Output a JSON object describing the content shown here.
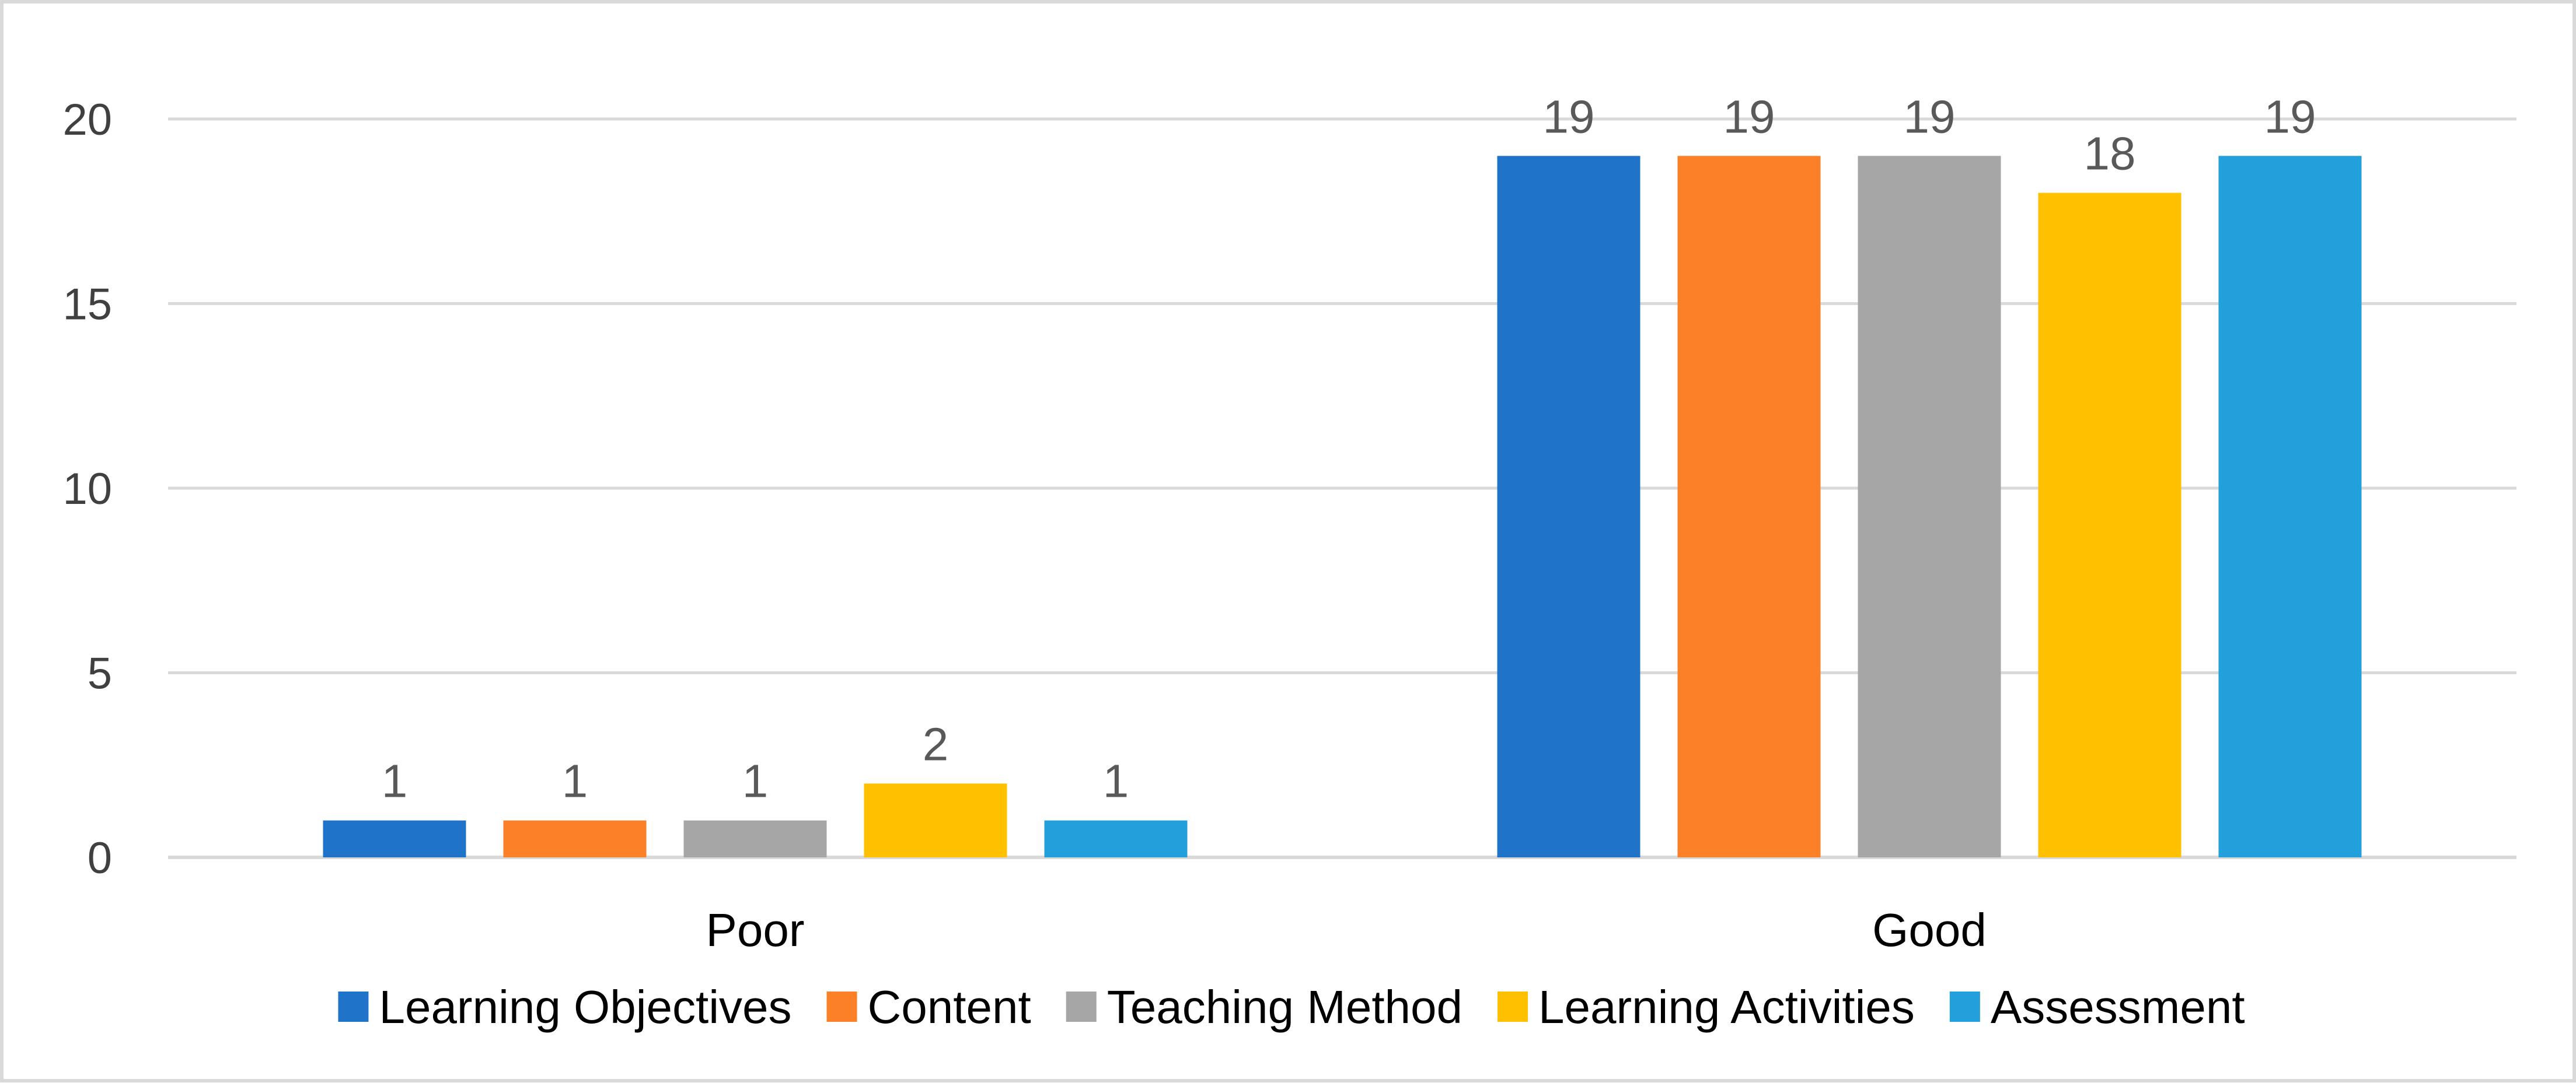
{
  "chart_data": {
    "type": "bar",
    "categories": [
      "Poor",
      "Good"
    ],
    "series": [
      {
        "name": "Learning Objectives",
        "values": [
          1,
          19
        ],
        "color": "#1F74C9"
      },
      {
        "name": "Content",
        "values": [
          1,
          19
        ],
        "color": "#FB8028"
      },
      {
        "name": "Teaching Method",
        "values": [
          1,
          19
        ],
        "color": "#A6A6A6"
      },
      {
        "name": "Learning Activities",
        "values": [
          2,
          18
        ],
        "color": "#FFC000"
      },
      {
        "name": "Assessment",
        "values": [
          1,
          19
        ],
        "color": "#21A0DB"
      }
    ],
    "ylim": [
      0,
      20
    ],
    "yticks": [
      "0",
      "5",
      "10",
      "15",
      "20"
    ],
    "title": "",
    "xlabel": "",
    "ylabel": "",
    "grid": true,
    "legend_position": "bottom",
    "data_labels": true
  }
}
